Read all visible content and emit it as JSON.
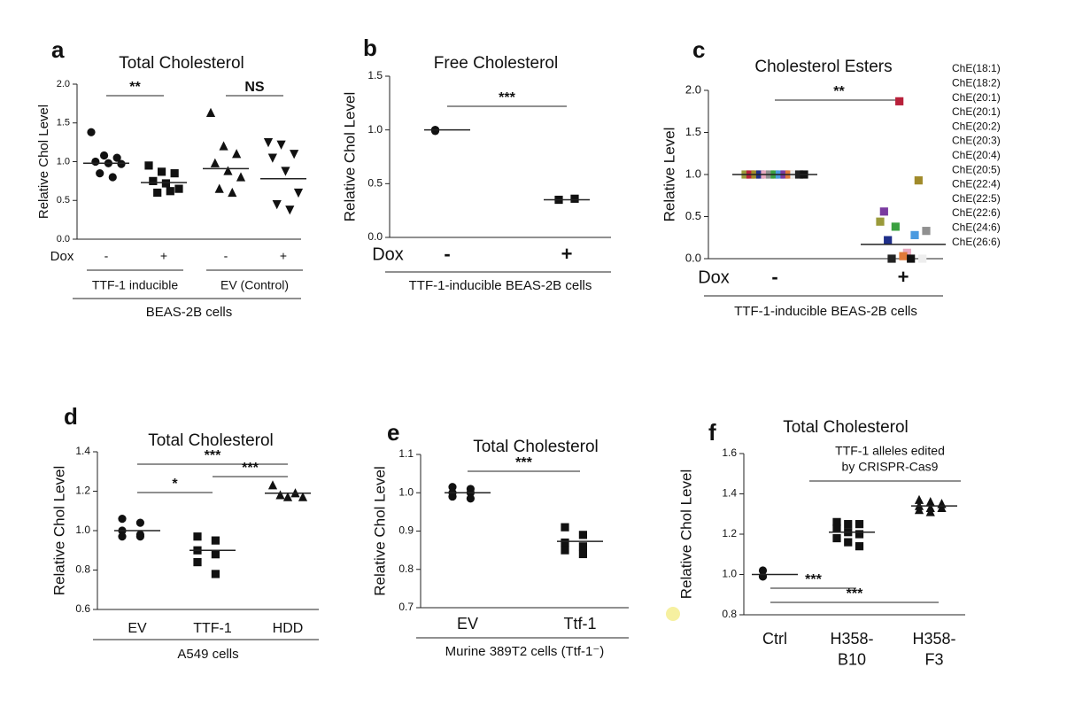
{
  "chart_data": [
    {
      "type": "strip",
      "panel": "a",
      "title": "Total Cholesterol",
      "ylabel": "Relative Chol Level",
      "ylim": [
        0,
        2
      ],
      "yticks": [
        {
          "value": 0,
          "label": "0.0"
        },
        0.5,
        {
          "value": 1,
          "label": "1.0"
        },
        1.5,
        {
          "value": 2,
          "label": "2.0"
        }
      ],
      "row_label": "Dox",
      "categories": [
        "-",
        "+",
        "-",
        "+"
      ],
      "groups": [
        {
          "marker": "circle",
          "color": "#111111",
          "points": [
            1.38,
            1.08,
            1.05,
            1.0,
            0.98,
            0.97,
            0.85,
            0.8
          ],
          "mean": 0.98
        },
        {
          "marker": "square",
          "color": "#111111",
          "points": [
            0.95,
            0.87,
            0.85,
            0.75,
            0.72,
            0.65,
            0.6,
            0.62
          ],
          "mean": 0.73
        },
        {
          "marker": "triangle-up",
          "color": "#111111",
          "points": [
            1.63,
            1.2,
            1.1,
            0.98,
            0.88,
            0.8,
            0.65,
            0.6
          ],
          "mean": 0.91
        },
        {
          "marker": "triangle-down",
          "color": "#111111",
          "points": [
            1.25,
            1.22,
            1.1,
            1.05,
            0.88,
            0.6,
            0.45,
            0.38
          ],
          "mean": 0.78
        }
      ],
      "significance": [
        {
          "label": "**",
          "between": [
            0,
            1
          ]
        },
        {
          "label": "NS",
          "between": [
            2,
            3
          ]
        }
      ],
      "group_labels": [
        "TTF-1 inducible",
        "EV (Control)"
      ],
      "xlabel": "BEAS-2B cells"
    },
    {
      "type": "strip",
      "panel": "b",
      "title": "Free Cholesterol",
      "ylabel": "Relative Chol Level",
      "ylim": [
        0,
        1.5
      ],
      "yticks": [
        {
          "value": 0,
          "label": "0.0"
        },
        0.5,
        {
          "value": 1,
          "label": "1.0"
        },
        1.5
      ],
      "row_label": "Dox",
      "categories": [
        "-",
        "+"
      ],
      "groups": [
        {
          "marker": "circle",
          "color": "#111111",
          "points": [
            1.0,
            1.0,
            0.99
          ],
          "mean": 1.0
        },
        {
          "marker": "square",
          "color": "#111111",
          "points": [
            0.35,
            0.36
          ],
          "mean": 0.35
        }
      ],
      "significance": [
        {
          "label": "***",
          "between": [
            0,
            1
          ]
        }
      ],
      "xlabel": "TTF-1-inducible BEAS-2B cells"
    },
    {
      "type": "stripcolor",
      "panel": "c",
      "title": "Cholesterol Esters",
      "ylabel": "Relative Level",
      "ylim": [
        0,
        2
      ],
      "yticks": [
        {
          "value": 0,
          "label": "0.0"
        },
        0.5,
        {
          "value": 1,
          "label": "1.0"
        },
        1.5,
        {
          "value": 2,
          "label": "2.0"
        }
      ],
      "row_label": "Dox",
      "categories": [
        "-",
        "+"
      ],
      "means": [
        1.0,
        0.17
      ],
      "series": [
        {
          "name": "ChE(18:1)",
          "color": "#9a9a3a",
          "values": [
            1.0,
            0.44
          ]
        },
        {
          "name": "ChE(18:2)",
          "color": "#b8203a",
          "values": [
            1.0,
            1.87
          ]
        },
        {
          "name": "ChE(20:1)",
          "color": "#a08a2a",
          "values": [
            1.0,
            0.93
          ]
        },
        {
          "name": "ChE(20:1)",
          "color": "#1f2f8a",
          "values": [
            1.0,
            0.22
          ]
        },
        {
          "name": "ChE(20:2)",
          "color": "#e8a8c0",
          "values": [
            1.0,
            0.07
          ]
        },
        {
          "name": "ChE(20:3)",
          "color": "#909090",
          "values": [
            1.0,
            0.33
          ]
        },
        {
          "name": "ChE(20:4)",
          "color": "#3aa040",
          "values": [
            1.0,
            0.38
          ]
        },
        {
          "name": "ChE(20:5)",
          "color": "#4a9ae0",
          "values": [
            1.0,
            0.28
          ]
        },
        {
          "name": "ChE(22:4)",
          "color": "#7a3aa0",
          "values": [
            1.0,
            0.56
          ]
        },
        {
          "name": "ChE(22:5)",
          "color": "#e07a3a",
          "values": [
            1.0,
            0.03
          ]
        },
        {
          "name": "ChE(22:6)",
          "color": "#eeeeee",
          "values": [
            1.0,
            0.0
          ]
        },
        {
          "name": "ChE(24:6)",
          "color": "#222222",
          "values": [
            1.0,
            0.0
          ]
        },
        {
          "name": "ChE(26:6)",
          "color": "#111111",
          "values": [
            1.0,
            0.0
          ]
        }
      ],
      "significance": [
        {
          "label": "**",
          "between": [
            0,
            1
          ]
        }
      ],
      "xlabel": "TTF-1-inducible BEAS-2B cells"
    },
    {
      "type": "strip",
      "panel": "d",
      "title": "Total Cholesterol",
      "ylabel": "Relative Chol Level",
      "ylim": [
        0.6,
        1.4
      ],
      "yticks": [
        0.6,
        0.8,
        {
          "value": 1,
          "label": "1.0"
        },
        1.2,
        1.4
      ],
      "categories": [
        "EV",
        "TTF-1",
        "HDD"
      ],
      "groups": [
        {
          "marker": "circle",
          "color": "#111111",
          "points": [
            1.06,
            1.04,
            1.0,
            0.98,
            0.97,
            0.97
          ],
          "mean": 1.0
        },
        {
          "marker": "square",
          "color": "#111111",
          "points": [
            0.97,
            0.95,
            0.9,
            0.88,
            0.84,
            0.78
          ],
          "mean": 0.9
        },
        {
          "marker": "triangle-up",
          "color": "#111111",
          "points": [
            1.23,
            1.19,
            1.18,
            1.17,
            1.17
          ],
          "mean": 1.19
        }
      ],
      "significance": [
        {
          "label": "***",
          "between": [
            0,
            2
          ]
        },
        {
          "label": "*",
          "between": [
            0,
            1
          ]
        },
        {
          "label": "***",
          "between": [
            1,
            2
          ]
        }
      ],
      "xlabel": "A549 cells"
    },
    {
      "type": "strip",
      "panel": "e",
      "title": "Total Cholesterol",
      "ylabel": "Relative Chol Level",
      "ylim": [
        0.7,
        1.1
      ],
      "yticks": [
        0.7,
        0.8,
        0.9,
        {
          "value": 1,
          "label": "1.0"
        },
        1.1
      ],
      "categories": [
        "EV",
        "Ttf-1"
      ],
      "groups": [
        {
          "marker": "circle",
          "color": "#111111",
          "points": [
            1.015,
            1.01,
            1.0,
            1.0,
            0.99,
            0.985
          ],
          "mean": 1.0
        },
        {
          "marker": "square",
          "color": "#111111",
          "points": [
            0.91,
            0.89,
            0.87,
            0.86,
            0.85,
            0.84
          ],
          "mean": 0.873
        }
      ],
      "significance": [
        {
          "label": "***",
          "between": [
            0,
            1
          ]
        }
      ],
      "xlabel": "Murine 389T2 cells (Ttf-1⁻)"
    },
    {
      "type": "strip",
      "panel": "f",
      "title": "Total Cholesterol",
      "ylabel": "Relative Chol Level",
      "annotation": [
        "TTF-1 alleles edited",
        "by CRISPR-Cas9"
      ],
      "ylim": [
        0.8,
        1.6
      ],
      "yticks": [
        0.8,
        {
          "value": 1,
          "label": "1.0"
        },
        1.2,
        1.4,
        1.6
      ],
      "categories": [
        "Ctrl",
        "H358-\nB10",
        "H358-\nF3"
      ],
      "groups": [
        {
          "marker": "circle",
          "color": "#111111",
          "points": [
            1.02,
            0.99,
            0.99
          ],
          "mean": 1.0
        },
        {
          "marker": "square",
          "color": "#111111",
          "points": [
            1.26,
            1.25,
            1.25,
            1.23,
            1.21,
            1.2,
            1.18,
            1.16,
            1.14
          ],
          "mean": 1.21
        },
        {
          "marker": "triangle-up",
          "color": "#111111",
          "points": [
            1.37,
            1.36,
            1.35,
            1.34,
            1.33,
            1.33,
            1.32,
            1.31,
            1.35
          ],
          "mean": 1.34
        }
      ],
      "significance": [
        {
          "label": "***",
          "between": [
            0,
            1
          ]
        },
        {
          "label": "***",
          "between": [
            0,
            2
          ]
        }
      ]
    }
  ]
}
